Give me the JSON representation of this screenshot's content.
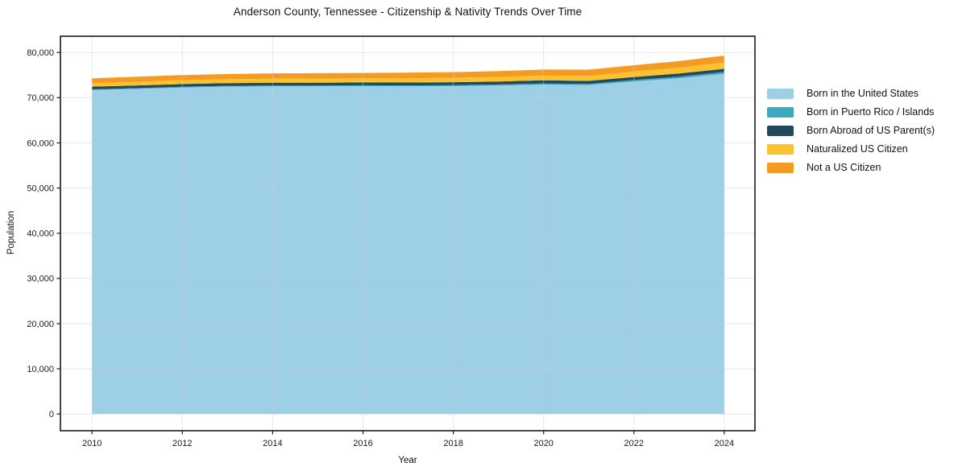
{
  "chart_data": {
    "type": "area",
    "stacked": true,
    "title": "Anderson County, Tennessee - Citizenship & Nativity Trends Over Time",
    "xlabel": "Year",
    "ylabel": "Population",
    "x": [
      2010,
      2011,
      2012,
      2013,
      2014,
      2015,
      2016,
      2017,
      2018,
      2019,
      2020,
      2021,
      2022,
      2023,
      2024
    ],
    "series": [
      {
        "name": "Born in the United States",
        "color": "#9dd0e7",
        "values": [
          71700,
          71950,
          72250,
          72450,
          72500,
          72500,
          72550,
          72500,
          72550,
          72700,
          72900,
          72800,
          73600,
          74300,
          75300
        ]
      },
      {
        "name": "Born in Puerto Rico / Islands",
        "color": "#3ea8c0",
        "values": [
          150,
          160,
          170,
          180,
          190,
          200,
          200,
          210,
          220,
          230,
          250,
          260,
          300,
          350,
          400
        ]
      },
      {
        "name": "Born Abroad of US Parent(s)",
        "color": "#234a5c",
        "values": [
          600,
          600,
          600,
          600,
          620,
          620,
          630,
          640,
          650,
          660,
          680,
          650,
          680,
          700,
          700
        ]
      },
      {
        "name": "Naturalized US Citizen",
        "color": "#fbc22f",
        "values": [
          750,
          800,
          850,
          850,
          880,
          900,
          900,
          950,
          980,
          1000,
          1050,
          1100,
          1200,
          1300,
          1400
        ]
      },
      {
        "name": "Not a US Citizen",
        "color": "#f59b23",
        "values": [
          1100,
          1150,
          1150,
          1150,
          1200,
          1200,
          1200,
          1250,
          1250,
          1300,
          1350,
          1400,
          1400,
          1450,
          1500
        ]
      }
    ],
    "x_ticks": [
      2010,
      2012,
      2014,
      2016,
      2018,
      2020,
      2022,
      2024
    ],
    "y_ticks": [
      0,
      10000,
      20000,
      30000,
      40000,
      50000,
      60000,
      70000,
      80000
    ],
    "xlim": [
      2009.3,
      2024.68
    ],
    "ylim": [
      -3700,
      83600
    ],
    "grid": true,
    "legend_position": "right",
    "axis_color": "#1a1a1a",
    "grid_color": "#cccccc"
  }
}
